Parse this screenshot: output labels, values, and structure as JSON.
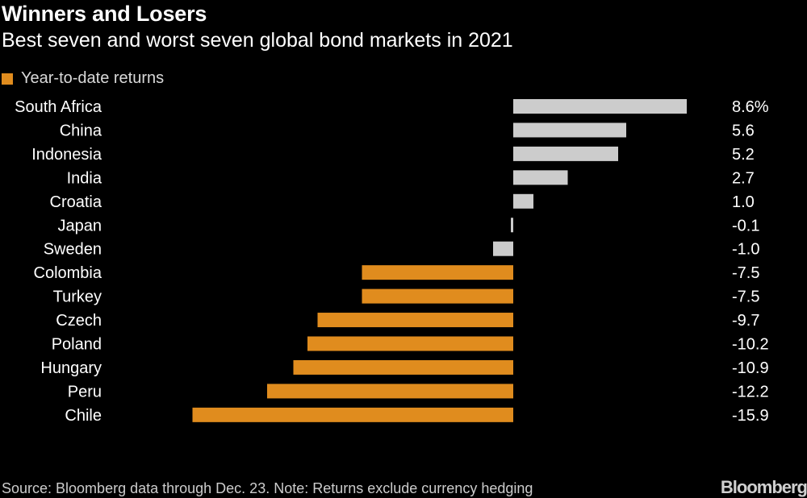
{
  "chart_data": {
    "type": "bar",
    "orientation": "horizontal",
    "title": "Winners and Losers",
    "subtitle": "Best seven and worst seven global bond markets in 2021",
    "legend": [
      {
        "label": "Year-to-date returns",
        "color": "#e08c1e"
      }
    ],
    "categories": [
      "South Africa",
      "China",
      "Indonesia",
      "India",
      "Croatia",
      "Japan",
      "Sweden",
      "Colombia",
      "Turkey",
      "Czech",
      "Poland",
      "Hungary",
      "Peru",
      "Chile"
    ],
    "values": [
      8.6,
      5.6,
      5.2,
      2.7,
      1.0,
      -0.1,
      -1.0,
      -7.5,
      -7.5,
      -9.7,
      -10.2,
      -10.9,
      -12.2,
      -15.9
    ],
    "value_labels": [
      "8.6%",
      "5.6",
      "5.2",
      "2.7",
      "1.0",
      "-0.1",
      "-1.0",
      "-7.5",
      "-7.5",
      "-9.7",
      "-10.2",
      "-10.9",
      "-12.2",
      "-15.9"
    ],
    "bar_colors": [
      "#cccccc",
      "#cccccc",
      "#cccccc",
      "#cccccc",
      "#cccccc",
      "#cccccc",
      "#cccccc",
      "#e08c1e",
      "#e08c1e",
      "#e08c1e",
      "#e08c1e",
      "#e08c1e",
      "#e08c1e",
      "#e08c1e"
    ],
    "xlim": [
      -15.9,
      8.6
    ]
  },
  "footer": {
    "source": "Source: Bloomberg data through Dec. 23. Note: Returns exclude currency hedging",
    "logo": "Bloomberg"
  },
  "colors": {
    "background": "#000000",
    "positive": "#cccccc",
    "negative": "#e08c1e",
    "text": "#ffffff"
  }
}
